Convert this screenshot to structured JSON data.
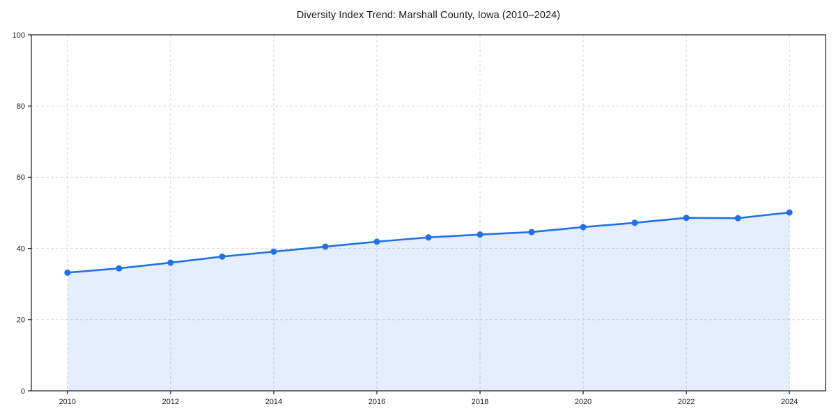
{
  "chart_data": {
    "type": "line",
    "title": "Diversity Index Trend: Marshall County, Iowa (2010–2024)",
    "x": [
      2010,
      2011,
      2012,
      2013,
      2014,
      2015,
      2016,
      2017,
      2018,
      2019,
      2020,
      2021,
      2022,
      2023,
      2024
    ],
    "values": [
      33.2,
      34.4,
      36.0,
      37.7,
      39.1,
      40.5,
      41.9,
      43.1,
      43.9,
      44.6,
      46.0,
      47.2,
      48.6,
      48.5,
      50.1
    ],
    "xticks": [
      2010,
      2012,
      2014,
      2016,
      2018,
      2020,
      2022,
      2024
    ],
    "yticks": [
      0,
      20,
      40,
      60,
      80,
      100
    ],
    "xlim": [
      2009.3,
      2024.7
    ],
    "ylim": [
      0,
      100
    ],
    "xlabel": "",
    "ylabel": "",
    "grid": true,
    "grid_style": "dashed",
    "legend": false,
    "area_fill": true,
    "marker": "circle",
    "colors": {
      "line": "#2170e8",
      "marker": "#2170e8",
      "area": "#2170e8",
      "area_opacity": 0.12,
      "grid": "#d9d9d9",
      "spine": "#1a1a1a",
      "text": "#1a1a1a"
    }
  }
}
